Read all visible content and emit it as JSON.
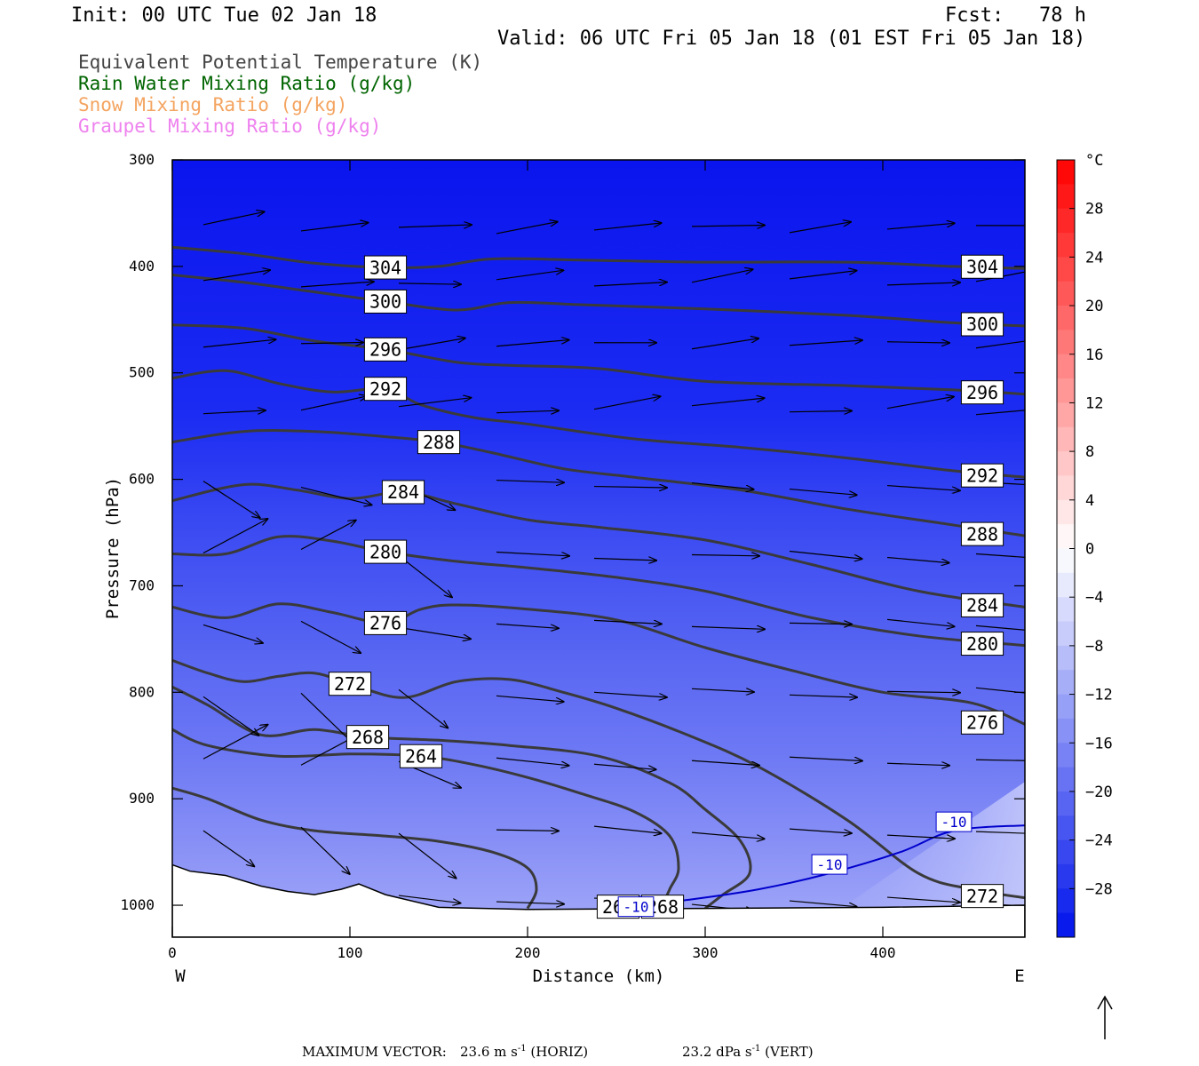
{
  "header": {
    "init": "Init: 00 UTC Tue 02 Jan 18",
    "fcst": "Fcst:   78 h",
    "valid": "Valid: 06 UTC Fri 05 Jan 18 (01 EST Fri 05 Jan 18)"
  },
  "legend": [
    {
      "label": "Equivalent Potential Temperature (K)",
      "color": "#444444"
    },
    {
      "label": "Rain Water Mixing Ratio (g/kg)",
      "color": "#006400"
    },
    {
      "label": "Snow Mixing Ratio (g/kg)",
      "color": "#f4a460"
    },
    {
      "label": "Graupel Mixing Ratio (g/kg)",
      "color": "#ee82ee"
    }
  ],
  "chart_data": {
    "type": "cross-section",
    "xlabel": "Distance (km)",
    "ylabel": "Pressure (hPa)",
    "xlim": [
      0,
      480
    ],
    "ylim": [
      1030,
      300
    ],
    "x_ticks": [
      "0",
      "100",
      "200",
      "300",
      "400"
    ],
    "y_ticks": [
      "300",
      "400",
      "500",
      "600",
      "700",
      "800",
      "900",
      "1000"
    ],
    "x_endpoints": {
      "left": "W",
      "right": "E"
    },
    "temperature_colorbar": {
      "unit": "°C",
      "levels": [
        "28",
        "24",
        "20",
        "16",
        "12",
        "8",
        "4",
        "0",
        "-4",
        "-8",
        "-12",
        "-16",
        "-20",
        "-24",
        "-28"
      ]
    },
    "theta_e_contours": [
      {
        "label": "304",
        "points": [
          [
            0,
            382
          ],
          [
            40,
            388
          ],
          [
            80,
            397
          ],
          [
            120,
            401
          ],
          [
            150,
            400
          ],
          [
            180,
            393
          ],
          [
            230,
            394
          ],
          [
            300,
            396
          ],
          [
            380,
            396
          ],
          [
            440,
            400
          ],
          [
            480,
            402
          ]
        ]
      },
      {
        "label": "300",
        "points": [
          [
            0,
            408
          ],
          [
            40,
            415
          ],
          [
            80,
            424
          ],
          [
            120,
            433
          ],
          [
            160,
            441
          ],
          [
            190,
            434
          ],
          [
            230,
            436
          ],
          [
            300,
            440
          ],
          [
            380,
            446
          ],
          [
            440,
            453
          ],
          [
            480,
            456
          ]
        ]
      },
      {
        "label": "296",
        "points": [
          [
            0,
            455
          ],
          [
            40,
            458
          ],
          [
            80,
            470
          ],
          [
            120,
            478
          ],
          [
            160,
            490
          ],
          [
            190,
            493
          ],
          [
            240,
            496
          ],
          [
            300,
            508
          ],
          [
            380,
            512
          ],
          [
            440,
            516
          ],
          [
            480,
            520
          ]
        ]
      },
      {
        "label": "292",
        "points": [
          [
            0,
            505
          ],
          [
            30,
            498
          ],
          [
            60,
            510
          ],
          [
            90,
            518
          ],
          [
            120,
            515
          ],
          [
            140,
            530
          ],
          [
            170,
            542
          ],
          [
            200,
            548
          ],
          [
            260,
            562
          ],
          [
            320,
            570
          ],
          [
            380,
            580
          ],
          [
            440,
            592
          ],
          [
            480,
            598
          ]
        ]
      },
      {
        "label": "288",
        "points": [
          [
            0,
            565
          ],
          [
            40,
            555
          ],
          [
            80,
            555
          ],
          [
            120,
            560
          ],
          [
            150,
            565
          ],
          [
            180,
            575
          ],
          [
            220,
            590
          ],
          [
            260,
            598
          ],
          [
            320,
            610
          ],
          [
            380,
            628
          ],
          [
            440,
            643
          ],
          [
            480,
            653
          ]
        ]
      },
      {
        "label": "284",
        "points": [
          [
            0,
            620
          ],
          [
            40,
            605
          ],
          [
            70,
            610
          ],
          [
            100,
            618
          ],
          [
            130,
            612
          ],
          [
            160,
            623
          ],
          [
            200,
            638
          ],
          [
            240,
            645
          ],
          [
            300,
            657
          ],
          [
            360,
            680
          ],
          [
            420,
            705
          ],
          [
            480,
            720
          ]
        ]
      },
      {
        "label": "280",
        "points": [
          [
            0,
            670
          ],
          [
            30,
            670
          ],
          [
            60,
            654
          ],
          [
            90,
            658
          ],
          [
            120,
            668
          ],
          [
            160,
            677
          ],
          [
            200,
            683
          ],
          [
            250,
            692
          ],
          [
            300,
            705
          ],
          [
            360,
            730
          ],
          [
            420,
            747
          ],
          [
            480,
            756
          ]
        ]
      },
      {
        "label": "276",
        "points": [
          [
            0,
            720
          ],
          [
            30,
            730
          ],
          [
            60,
            717
          ],
          [
            90,
            725
          ],
          [
            120,
            735
          ],
          [
            140,
            722
          ],
          [
            160,
            718
          ],
          [
            200,
            722
          ],
          [
            250,
            732
          ],
          [
            300,
            758
          ],
          [
            350,
            780
          ],
          [
            400,
            800
          ],
          [
            450,
            810
          ],
          [
            480,
            830
          ]
        ]
      },
      {
        "label": "272",
        "points": [
          [
            0,
            770
          ],
          [
            20,
            782
          ],
          [
            40,
            790
          ],
          [
            60,
            785
          ],
          [
            80,
            782
          ],
          [
            100,
            792
          ],
          [
            130,
            805
          ],
          [
            160,
            790
          ],
          [
            190,
            788
          ],
          [
            220,
            800
          ],
          [
            250,
            815
          ],
          [
            290,
            840
          ],
          [
            330,
            870
          ],
          [
            380,
            920
          ],
          [
            420,
            970
          ],
          [
            450,
            985
          ],
          [
            480,
            993
          ]
        ]
      },
      {
        "label": "268",
        "points": [
          [
            0,
            795
          ],
          [
            20,
            812
          ],
          [
            50,
            840
          ],
          [
            80,
            835
          ],
          [
            110,
            842
          ],
          [
            150,
            845
          ],
          [
            190,
            850
          ],
          [
            240,
            860
          ],
          [
            280,
            885
          ],
          [
            300,
            910
          ],
          [
            320,
            940
          ],
          [
            325,
            970
          ],
          [
            310,
            990
          ],
          [
            300,
            1003
          ]
        ]
      },
      {
        "label": "264",
        "points": [
          [
            0,
            835
          ],
          [
            20,
            850
          ],
          [
            60,
            860
          ],
          [
            100,
            858
          ],
          [
            140,
            860
          ],
          [
            170,
            868
          ],
          [
            200,
            880
          ],
          [
            230,
            895
          ],
          [
            260,
            912
          ],
          [
            280,
            935
          ],
          [
            285,
            965
          ],
          [
            280,
            985
          ],
          [
            275,
            1003
          ]
        ]
      },
      {
        "label": "",
        "points": [
          [
            0,
            890
          ],
          [
            20,
            900
          ],
          [
            50,
            920
          ],
          [
            80,
            930
          ],
          [
            120,
            935
          ],
          [
            150,
            940
          ],
          [
            180,
            950
          ],
          [
            200,
            965
          ],
          [
            205,
            985
          ],
          [
            200,
            1003
          ]
        ]
      }
    ],
    "temperature_contours": [
      {
        "label": "-10",
        "points": [
          [
            250,
            1003
          ],
          [
            290,
            995
          ],
          [
            330,
            985
          ],
          [
            370,
            970
          ],
          [
            410,
            950
          ],
          [
            440,
            930
          ],
          [
            480,
            925
          ]
        ]
      }
    ],
    "wind_vectors_note": "HORIZ/VERT circulation vectors",
    "max_vector": {
      "label": "MAXIMUM VECTOR:",
      "horiz": "23.6 m s",
      "horiz_unit": "(HORIZ)",
      "vert": "23.2 dPa s",
      "vert_unit": "(VERT)"
    }
  }
}
